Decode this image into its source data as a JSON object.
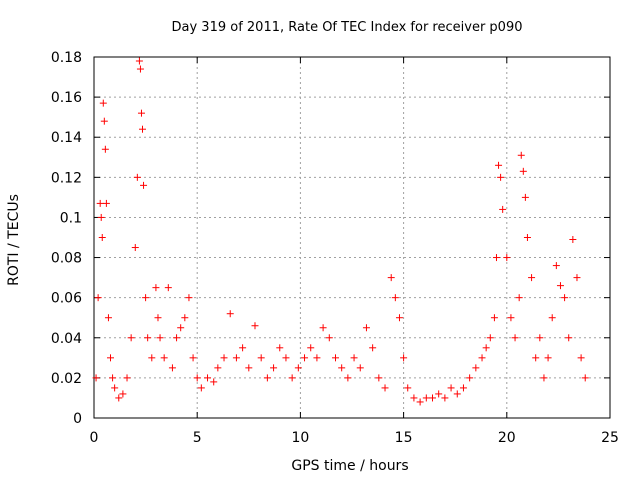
{
  "chart_data": {
    "type": "scatter",
    "title": "Day 319 of 2011, Rate Of TEC Index for receiver p090",
    "xlabel": "GPS time / hours",
    "ylabel": "ROTI / TECUs",
    "xlim": [
      0,
      25
    ],
    "ylim": [
      0,
      0.18
    ],
    "x_ticks": [
      "0",
      "5",
      "10",
      "15",
      "20",
      "25"
    ],
    "y_ticks": [
      "0",
      "0.02",
      "0.04",
      "0.06",
      "0.08",
      "0.1",
      "0.12",
      "0.14",
      "0.16",
      "0.18"
    ],
    "grid": true,
    "marker": "+",
    "marker_color": "#ff0000",
    "series": [
      {
        "x": [
          0.1,
          0.2,
          0.3,
          0.35,
          0.4,
          0.45,
          0.5,
          0.55,
          0.6,
          0.7,
          0.8,
          0.9,
          1.0,
          1.2,
          1.4,
          1.6,
          1.8,
          2.0,
          2.1,
          2.2,
          2.25,
          2.3,
          2.35,
          2.4,
          2.5,
          2.6,
          2.8,
          3.0,
          3.1,
          3.2,
          3.4,
          3.6,
          3.8,
          4.0,
          4.2,
          4.4,
          4.6,
          4.8,
          5.0,
          5.2,
          5.5,
          5.8,
          6.0,
          6.3,
          6.6,
          6.9,
          7.2,
          7.5,
          7.8,
          8.1,
          8.4,
          8.7,
          9.0,
          9.3,
          9.6,
          9.9,
          10.2,
          10.5,
          10.8,
          11.1,
          11.4,
          11.7,
          12.0,
          12.3,
          12.6,
          12.9,
          13.2,
          13.5,
          13.8,
          14.1,
          14.4,
          14.6,
          14.8,
          15.0,
          15.2,
          15.5,
          15.8,
          16.1,
          16.4,
          16.7,
          17.0,
          17.3,
          17.6,
          17.9,
          18.2,
          18.5,
          18.8,
          19.0,
          19.2,
          19.4,
          19.5,
          19.6,
          19.7,
          19.8,
          20.0,
          20.2,
          20.4,
          20.6,
          20.7,
          20.8,
          20.9,
          21.0,
          21.2,
          21.4,
          21.6,
          21.8,
          22.0,
          22.2,
          22.4,
          22.6,
          22.8,
          23.0,
          23.2,
          23.4,
          23.6,
          23.8
        ],
        "y": [
          0.02,
          0.06,
          0.107,
          0.1,
          0.09,
          0.157,
          0.148,
          0.134,
          0.107,
          0.05,
          0.03,
          0.02,
          0.015,
          0.01,
          0.012,
          0.02,
          0.04,
          0.085,
          0.12,
          0.178,
          0.174,
          0.152,
          0.144,
          0.116,
          0.06,
          0.04,
          0.03,
          0.065,
          0.05,
          0.04,
          0.03,
          0.065,
          0.025,
          0.04,
          0.045,
          0.05,
          0.06,
          0.03,
          0.02,
          0.015,
          0.02,
          0.018,
          0.025,
          0.03,
          0.052,
          0.03,
          0.035,
          0.025,
          0.046,
          0.03,
          0.02,
          0.025,
          0.035,
          0.03,
          0.02,
          0.025,
          0.03,
          0.035,
          0.03,
          0.045,
          0.04,
          0.03,
          0.025,
          0.02,
          0.03,
          0.025,
          0.045,
          0.035,
          0.02,
          0.015,
          0.07,
          0.06,
          0.05,
          0.03,
          0.015,
          0.01,
          0.008,
          0.01,
          0.01,
          0.012,
          0.01,
          0.015,
          0.012,
          0.015,
          0.02,
          0.025,
          0.03,
          0.035,
          0.04,
          0.05,
          0.08,
          0.126,
          0.12,
          0.104,
          0.08,
          0.05,
          0.04,
          0.06,
          0.131,
          0.123,
          0.11,
          0.09,
          0.07,
          0.03,
          0.04,
          0.02,
          0.03,
          0.05,
          0.076,
          0.066,
          0.06,
          0.04,
          0.089,
          0.07,
          0.03,
          0.02
        ]
      }
    ]
  }
}
